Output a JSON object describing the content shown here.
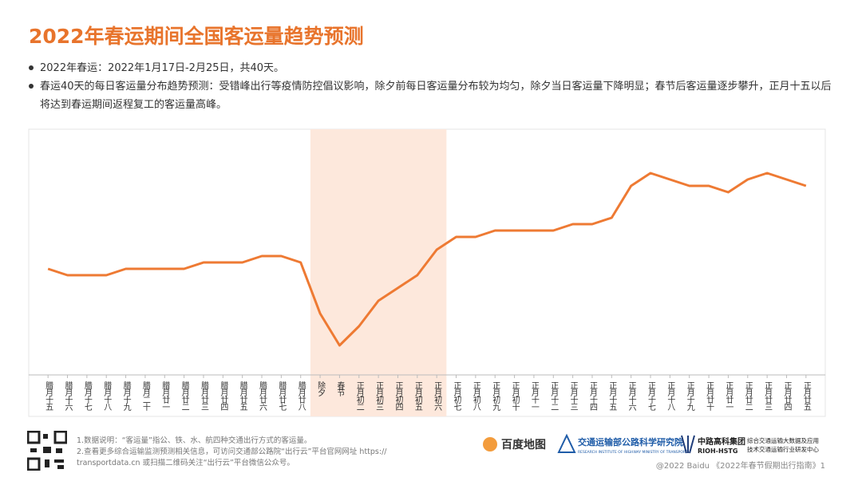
{
  "header": {
    "title": "2022年春运期间全国客运量趋势预测",
    "bullets": [
      "2022年春运：2022年1月17日-2月25日，共40天。",
      "春运40天的每日客运量分布趋势预测：受错峰出行等疫情防控倡议影响，除夕前每日客运量分布较为均匀，除夕当日客运量下降明显；春节后客运量逐步攀升，正月十五以后将达到春运期间返程复工的客运量高峰。"
    ]
  },
  "chart_data": {
    "type": "line",
    "categories": [
      "腊月十五",
      "腊月十六",
      "腊月十七",
      "腊月十八",
      "腊月十九",
      "腊月二十",
      "腊月廿一",
      "腊月廿二",
      "腊月廿三",
      "腊月廿四",
      "腊月廿五",
      "腊月廿六",
      "腊月廿七",
      "腊月廿八",
      "除夕",
      "春节",
      "正月初二",
      "正月初三",
      "正月初四",
      "正月初五",
      "正月初六",
      "正月初七",
      "正月初八",
      "正月初九",
      "正月初十",
      "正月十一",
      "正月十二",
      "正月十三",
      "正月十四",
      "正月十五",
      "正月十六",
      "正月十七",
      "正月十八",
      "正月十九",
      "正月廿十",
      "正月廿一",
      "正月廿二",
      "正月廿三",
      "正月廿四",
      "正月廿五"
    ],
    "values": [
      133,
      125,
      125,
      125,
      133,
      133,
      133,
      133,
      141,
      141,
      141,
      149,
      149,
      141,
      77,
      37,
      61,
      93,
      109,
      125,
      157,
      173,
      173,
      181,
      181,
      181,
      181,
      189,
      189,
      197,
      237,
      253,
      245,
      237,
      237,
      229,
      245,
      253,
      245,
      237
    ],
    "color": "#ee7a33",
    "ylim": [
      0,
      308
    ],
    "highlight": {
      "from": 14,
      "to": 20,
      "color": "#fde8dc"
    }
  },
  "footer": {
    "notes": [
      "1.数据说明：“客运量”指公、铁、水、航四种交通出行方式的客运量。",
      "2.查看更多综合运输监测预测相关信息，可访问交通部公路院“出行云”平台官网网址 https://",
      "transportdata.cn 或扫描二维码关注“出行云”平台微信公众号。"
    ],
    "logos": [
      "百度地图",
      "交通运输部公路科学研究院",
      "RESEARCH INSTITUTE OF HIGHWAY MINISTRY OF TRANSPORT",
      "中路高科集团",
      "RIOH-HSTG",
      "综合交通运输大数据及应用",
      "技术交通运输行业研发中心"
    ],
    "copyright": "@2022 Baidu 《2022年春节假期出行指南》1"
  }
}
